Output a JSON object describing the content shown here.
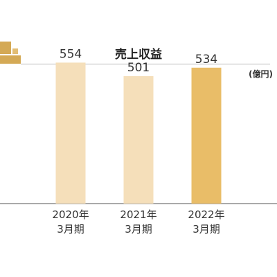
{
  "chart_data": {
    "type": "bar",
    "title": "売上収益",
    "unit": "(億円)",
    "categories": [
      [
        "2020年",
        "3月期"
      ],
      [
        "2021年",
        "3月期"
      ],
      [
        "2022年",
        "3月期"
      ]
    ],
    "values": [
      554,
      501,
      534
    ],
    "value_labels": [
      "554",
      "501",
      "534"
    ],
    "bar_colors": [
      "#f5dfba",
      "#f5dfba",
      "#e9bd68"
    ],
    "ylim": [
      0,
      800
    ],
    "grid": false,
    "legend": "none"
  },
  "colors": {
    "logo_gold": "#d4a955",
    "logo_light": "#ecd6a6",
    "axis": "#555555",
    "text": "#333333"
  }
}
